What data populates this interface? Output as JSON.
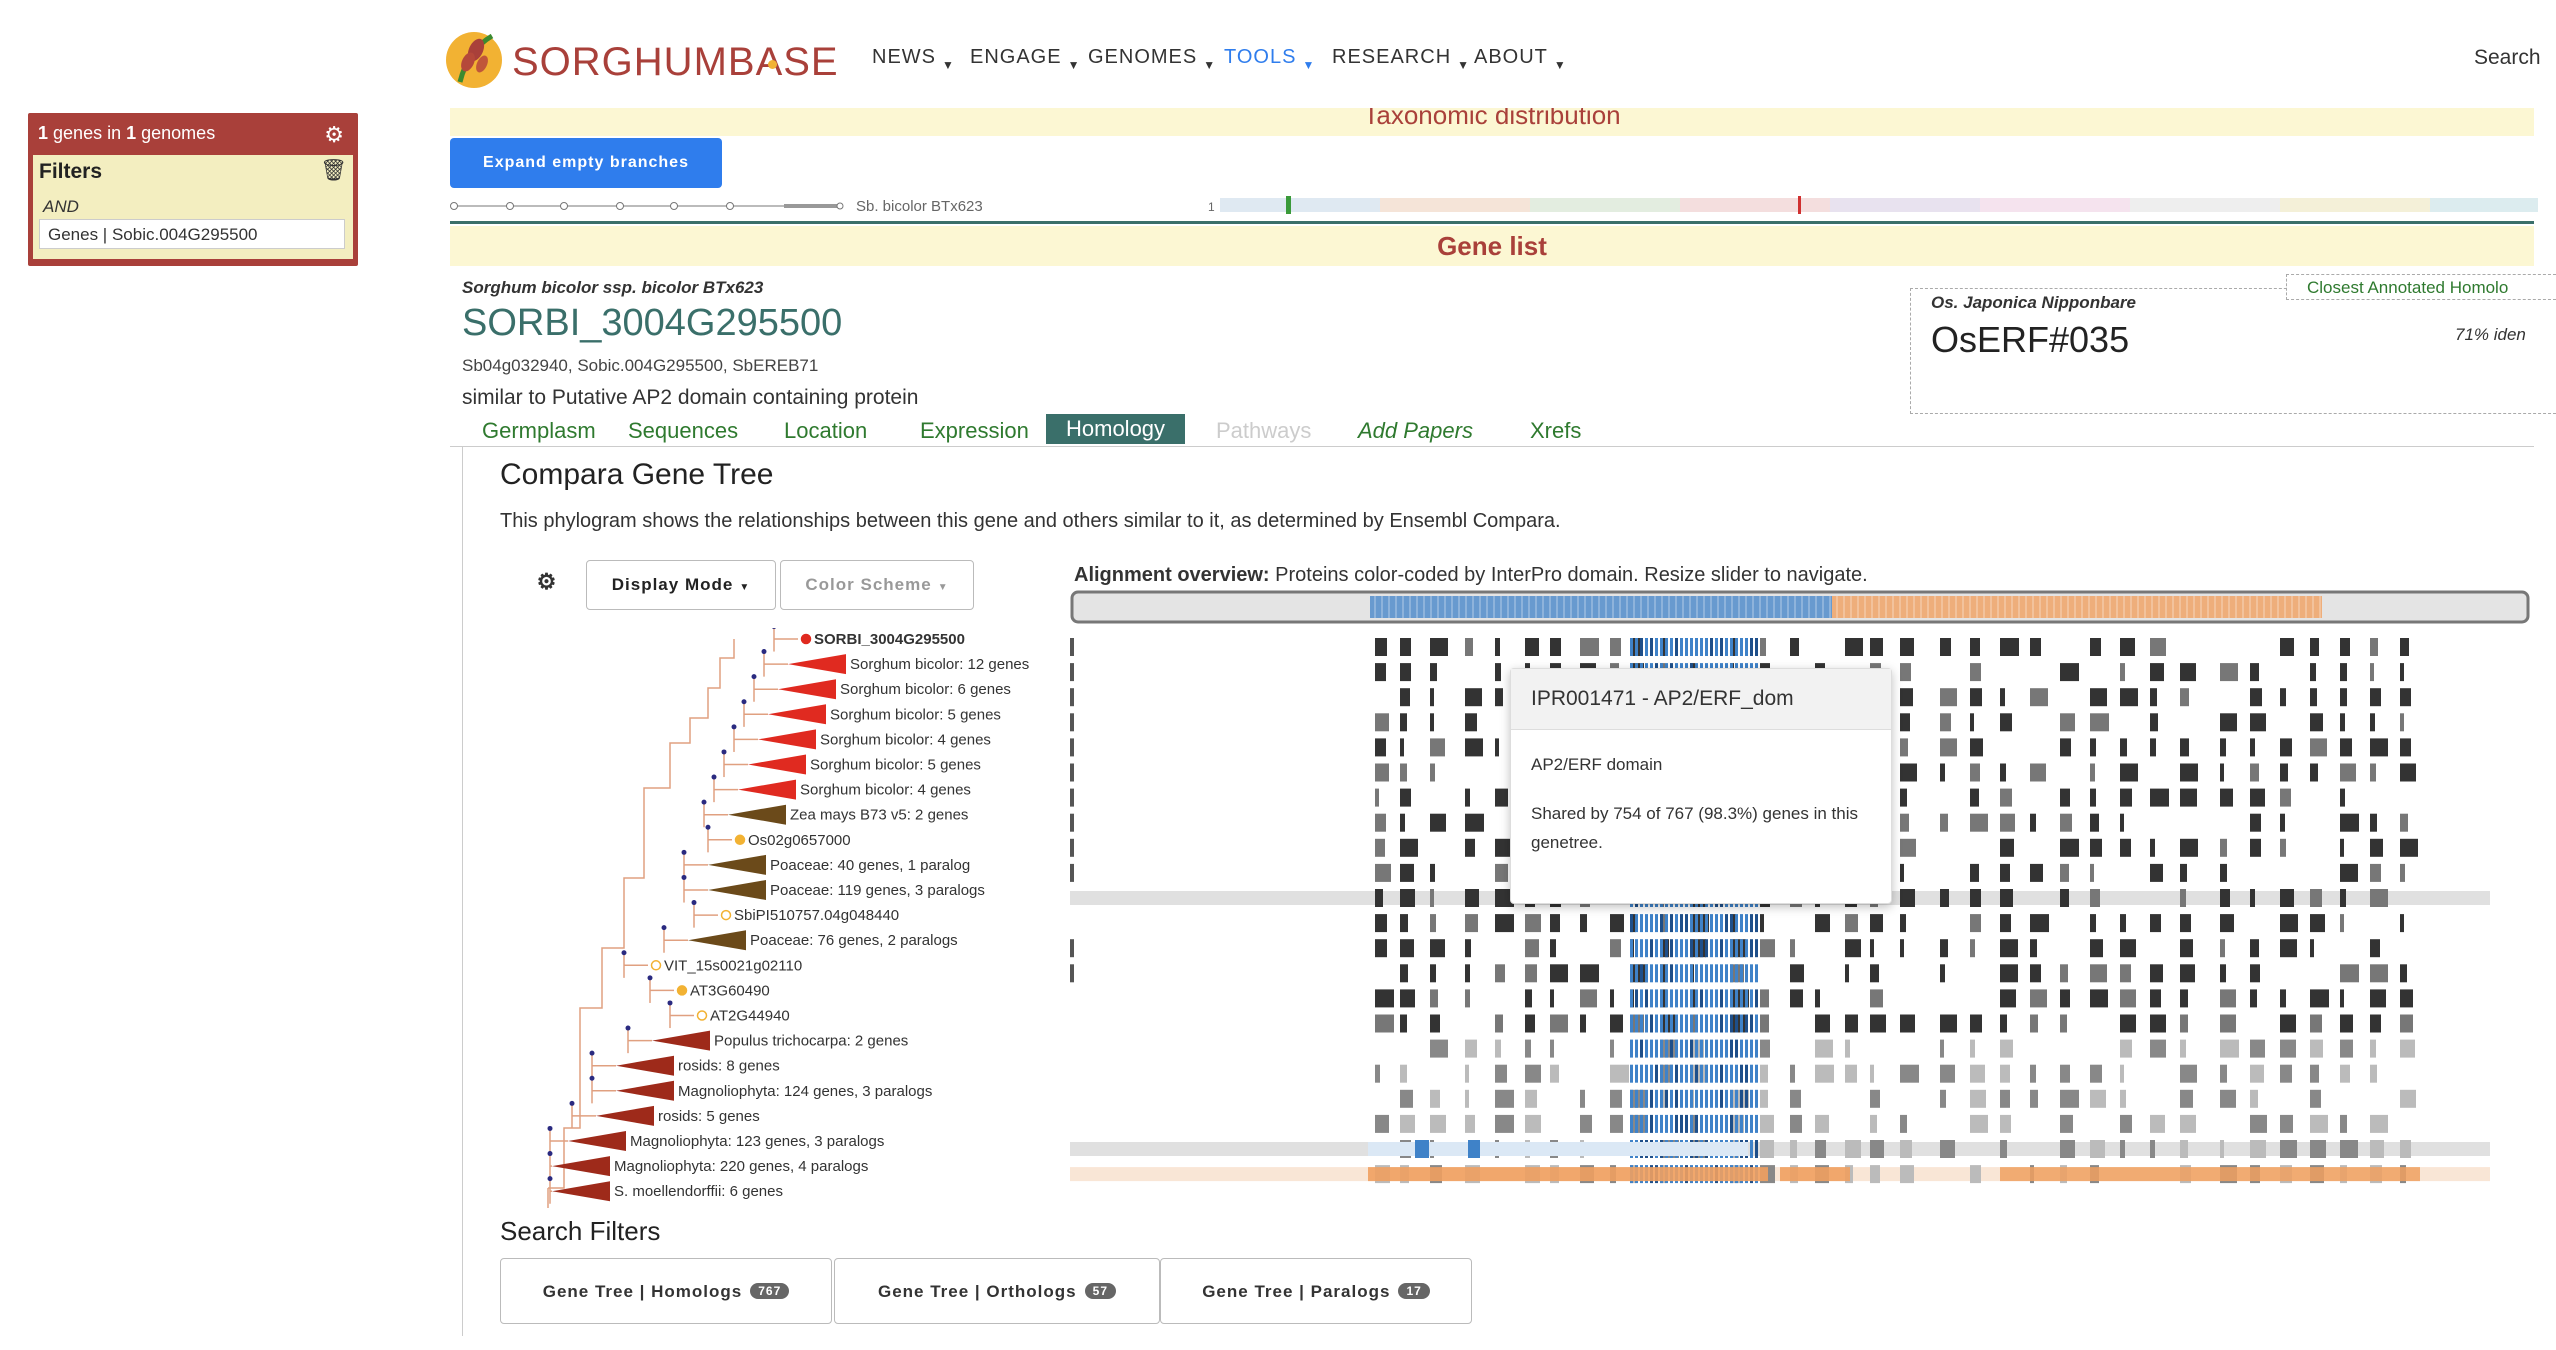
{
  "filters": {
    "summary_count_genes": "1",
    "summary_genes_text": "genes in",
    "summary_count_genomes": "1",
    "summary_genomes_text": "genomes",
    "title": "Filters",
    "operator": "AND",
    "chip": "Genes | Sobic.004G295500"
  },
  "header": {
    "logo": "SORGHUMBASE",
    "nav": [
      "NEWS",
      "ENGAGE",
      "GENOMES",
      "TOOLS",
      "RESEARCH",
      "ABOUT"
    ],
    "search": "Search"
  },
  "taxonomy": {
    "title": "Taxonomic distribution",
    "expand_button": "Expand empty branches",
    "tree_leaf": "Sb. bicolor BTx623",
    "axis_tick": "1"
  },
  "gene_list": {
    "title": "Gene list",
    "species": "Sorghum bicolor ssp. bicolor BTx623",
    "gene_id": "SORBI_3004G295500",
    "synonyms": "Sb04g032940, Sobic.004G295500, SbEREB71",
    "description": "similar to Putative AP2 domain containing protein",
    "closest": {
      "label": "Closest Annotated Homolo",
      "species": "Os. Japonica Nipponbare",
      "gene": "OsERF#035",
      "identity": "71% iden"
    },
    "tabs": [
      "Germplasm",
      "Sequences",
      "Location",
      "Expression",
      "Homology",
      "Pathways",
      "Add Papers",
      "Xrefs"
    ]
  },
  "compara": {
    "title": "Compara Gene Tree",
    "description": "This phylogram shows the relationships between this gene and others similar to it, as determined by Ensembl Compara.",
    "display_mode": "Display Mode",
    "color_scheme": "Color Scheme",
    "alignment_title": "Alignment overview:",
    "alignment_desc": "Proteins color-coded by InterPro domain. Resize slider to navigate.",
    "tree_labels": [
      "SORBI_3004G295500",
      "Sorghum bicolor: 12 genes",
      "Sorghum bicolor: 6 genes",
      "Sorghum bicolor: 5 genes",
      "Sorghum bicolor: 4 genes",
      "Sorghum bicolor: 5 genes",
      "Sorghum bicolor: 4 genes",
      "Zea mays B73 v5: 2 genes",
      "Os02g0657000",
      "Poaceae: 40 genes, 1 paralog",
      "Poaceae: 119 genes, 3 paralogs",
      "SbiPI510757.04g048440",
      "Poaceae: 76 genes, 2 paralogs",
      "VIT_15s0021g02110",
      "AT3G60490",
      "AT2G44940",
      "Populus trichocarpa: 2 genes",
      "rosids: 8 genes",
      "Magnoliophyta: 124 genes, 3 paralogs",
      "rosids: 5 genes",
      "Magnoliophyta: 123 genes, 3 paralogs",
      "Magnoliophyta: 220 genes, 4 paralogs",
      "S. moellendorffii: 6 genes"
    ],
    "tooltip": {
      "title": "IPR001471 - AP2/ERF_dom",
      "name": "AP2/ERF domain",
      "shared": "Shared by 754 of 767 (98.3%) genes in this genetree."
    }
  },
  "search_filters": {
    "title": "Search Filters",
    "buttons": [
      {
        "label": "Gene Tree | Homologs",
        "count": "767"
      },
      {
        "label": "Gene Tree | Orthologs",
        "count": "57"
      },
      {
        "label": "Gene Tree | Paralogs",
        "count": "17"
      }
    ]
  },
  "colors": {
    "brand": "#a9403a",
    "link_green": "#2f7a2f",
    "tab_active": "#3a6f6a",
    "button_blue": "#2f7ded",
    "domain_blue": "#3f82c8",
    "domain_orange": "#f0a060",
    "triangle_red": "#e02a20",
    "triangle_brown": "#6b4a1a",
    "triangle_darkred": "#9e2a1a"
  }
}
